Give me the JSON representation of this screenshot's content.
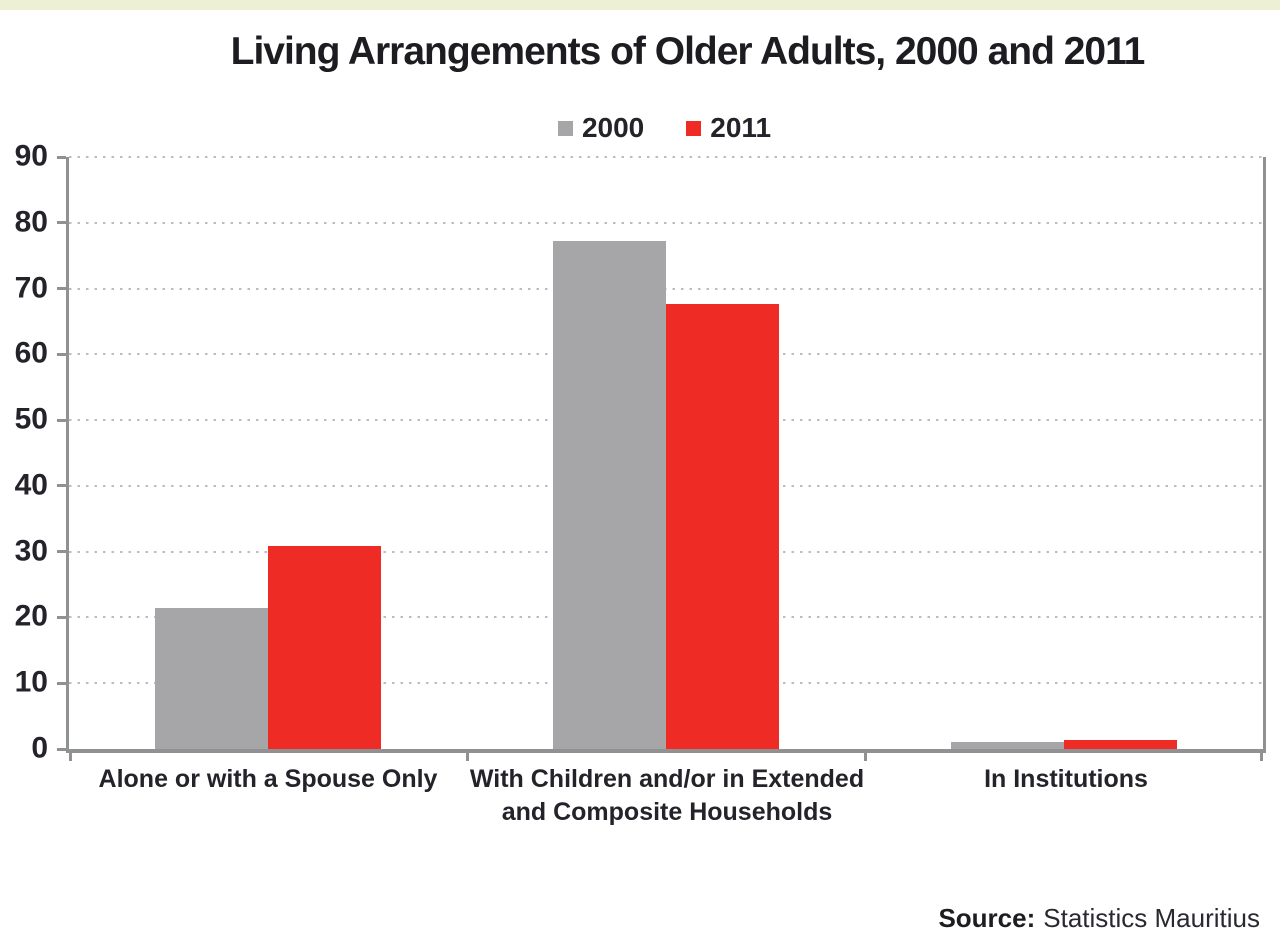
{
  "title": "Living Arrangements of Older Adults, 2000 and 2011",
  "source": {
    "label": "Source:",
    "text": "Statistics Mauritius"
  },
  "colors": {
    "series_2000": "#a6a6a8",
    "series_2011": "#ee2b25",
    "axis": "#8f9193",
    "gridline": "#bcbdbf",
    "top_strip": "#eef0d5",
    "text": "#25232a"
  },
  "chart_data": {
    "type": "bar",
    "title": "Living Arrangements of Older Adults, 2000 and 2011",
    "categories": [
      "Alone or with a Spouse Only",
      "With Children and/or in Extended and Composite Households",
      "In Institutions"
    ],
    "series": [
      {
        "name": "2000",
        "color": "#a6a6a8",
        "values": [
          21.4,
          77.3,
          1.1
        ]
      },
      {
        "name": "2011",
        "color": "#ee2b25",
        "values": [
          30.8,
          67.6,
          1.4
        ]
      }
    ],
    "xlabel": "",
    "ylabel": "",
    "ylim": [
      0,
      90
    ],
    "y_ticks": [
      0,
      10,
      20,
      30,
      40,
      50,
      60,
      70,
      80,
      90
    ],
    "grid": "horizontal-dotted",
    "legend_position": "top-center",
    "source": "Source: Statistics Mauritius"
  }
}
